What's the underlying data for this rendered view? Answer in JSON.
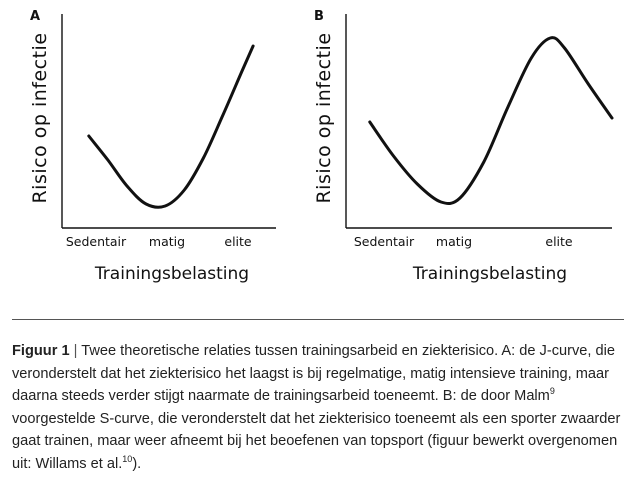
{
  "chart_data": [
    {
      "type": "line",
      "panel": "A",
      "ylabel": "Risico op infectie",
      "xlabel": "Trainingsbelasting",
      "categories": [
        "Sedentair",
        "matig",
        "elite"
      ],
      "x": [
        0,
        0.25,
        0.5,
        0.75,
        1.0,
        1.25,
        1.5,
        1.75,
        2.0,
        2.15
      ],
      "values": [
        0.46,
        0.34,
        0.21,
        0.12,
        0.11,
        0.19,
        0.35,
        0.56,
        0.78,
        0.91
      ],
      "xlim": [
        -0.35,
        2.45
      ],
      "ylim": [
        0,
        1
      ],
      "curve_name": "J-curve"
    },
    {
      "type": "line",
      "panel": "B",
      "ylabel": "Risico op infectie",
      "xlabel": "Trainingsbelasting",
      "categories": [
        "Sedentair",
        "matig",
        "elite"
      ],
      "x": [
        -0.1,
        0.15,
        0.4,
        0.65,
        0.85,
        1.1,
        1.35,
        1.6,
        1.8,
        1.95,
        2.2,
        2.45
      ],
      "values": [
        0.53,
        0.36,
        0.22,
        0.13,
        0.15,
        0.33,
        0.6,
        0.85,
        0.95,
        0.9,
        0.72,
        0.55
      ],
      "xlim": [
        -0.35,
        2.45
      ],
      "ylim": [
        0,
        1
      ],
      "curve_name": "S-curve"
    }
  ],
  "caption": {
    "label": "Figuur 1",
    "separator": "|",
    "text_1": " Twee theoretische relaties tussen trainingsarbeid en ziekterisico. A: de J-curve, die veronderstelt dat het ziekterisico het laagst is bij regelmatige, matig intensieve training, maar daarna steeds verder stijgt naarmate de trainingsarbeid toeneemt. B: de door Malm",
    "ref_1": "9",
    "text_2": " voorgestelde S-curve, die veronderstelt dat het ziekterisico toeneemt als een sporter zwaarder gaat trainen, maar weer afneemt bij het beoefenen van topsport (figuur bewerkt overgenomen uit: Willams et al.",
    "ref_2": "10",
    "text_3": ")."
  }
}
